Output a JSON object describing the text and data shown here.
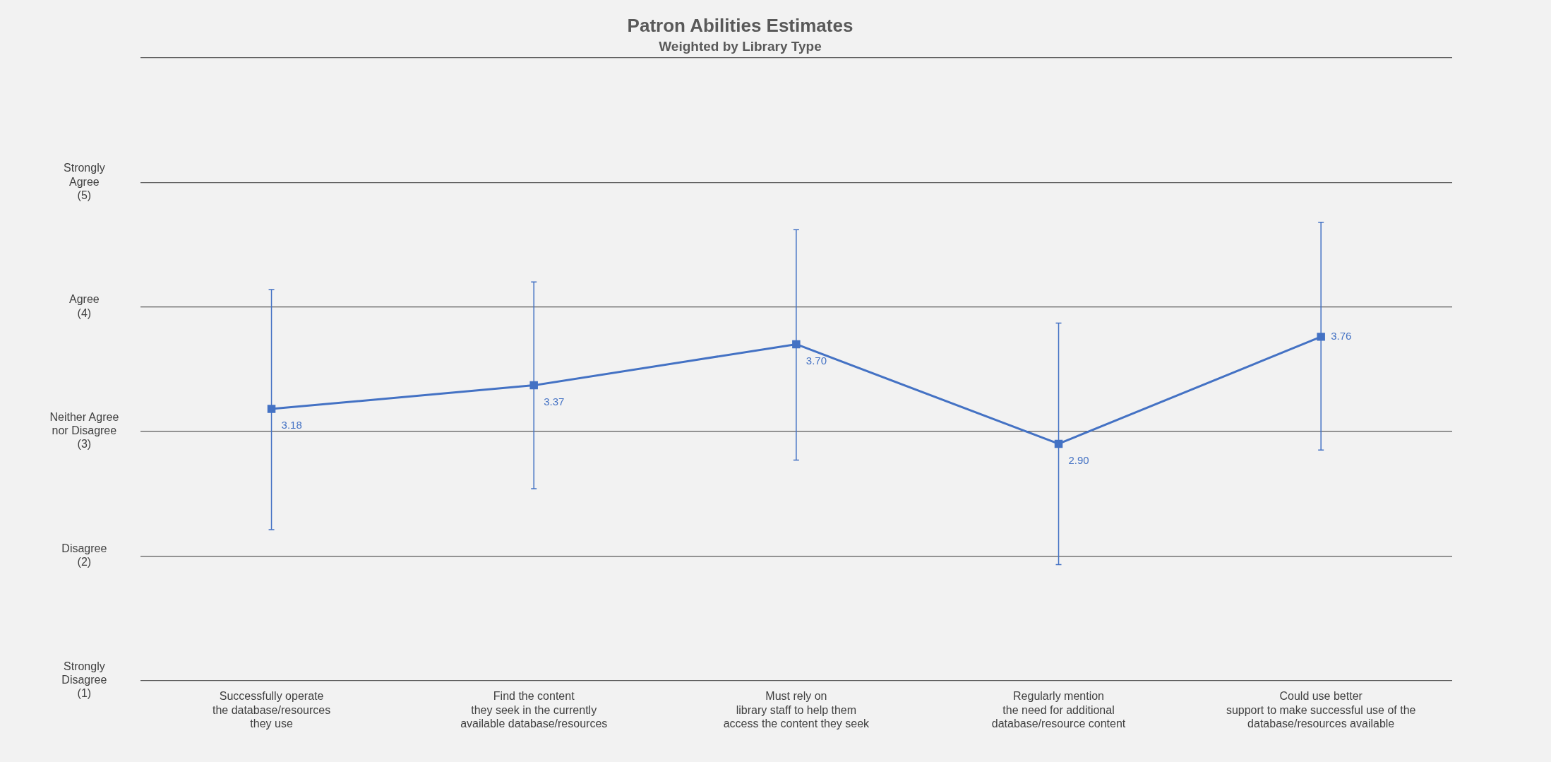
{
  "chart_data": {
    "type": "line",
    "title": "Patron Abilities Estimates",
    "subtitle": "Weighted by Library Type",
    "categories": [
      "Successfully operate\nthe database/resources\nthey use",
      "Find the content\nthey seek in the currently\navailable database/resources",
      "Must rely on\nlibrary staff to help them\naccess the content they seek",
      "Regularly mention\nthe need for additional\ndatabase/resource content",
      "Could use better\nsupport to make successful use of the\ndatabase/resources available"
    ],
    "series": [
      {
        "color": "#4472c4",
        "values": [
          3.18,
          3.37,
          3.7,
          2.9,
          3.76
        ],
        "value_labels": [
          "3.18",
          "3.37",
          "3.70",
          "2.90",
          "3.76"
        ],
        "errors": [
          [
            2.21,
            4.14
          ],
          [
            2.54,
            4.2
          ],
          [
            2.77,
            4.62
          ],
          [
            1.93,
            3.87
          ],
          [
            2.85,
            4.68
          ]
        ]
      }
    ],
    "ylim": [
      1,
      6
    ],
    "yticks": [
      {
        "value": 1,
        "label": "Strongly\nDisagree\n(1)"
      },
      {
        "value": 2,
        "label": "Disagree\n(2)"
      },
      {
        "value": 3,
        "label": "Neither Agree\nnor Disagree\n(3)"
      },
      {
        "value": 4,
        "label": "Agree\n(4)"
      },
      {
        "value": 5,
        "label": "Strongly\nAgree\n(5)"
      },
      {
        "value": 6,
        "label": null
      }
    ],
    "grid": "y",
    "legend": false,
    "marker": "square",
    "line_style": "solid"
  }
}
